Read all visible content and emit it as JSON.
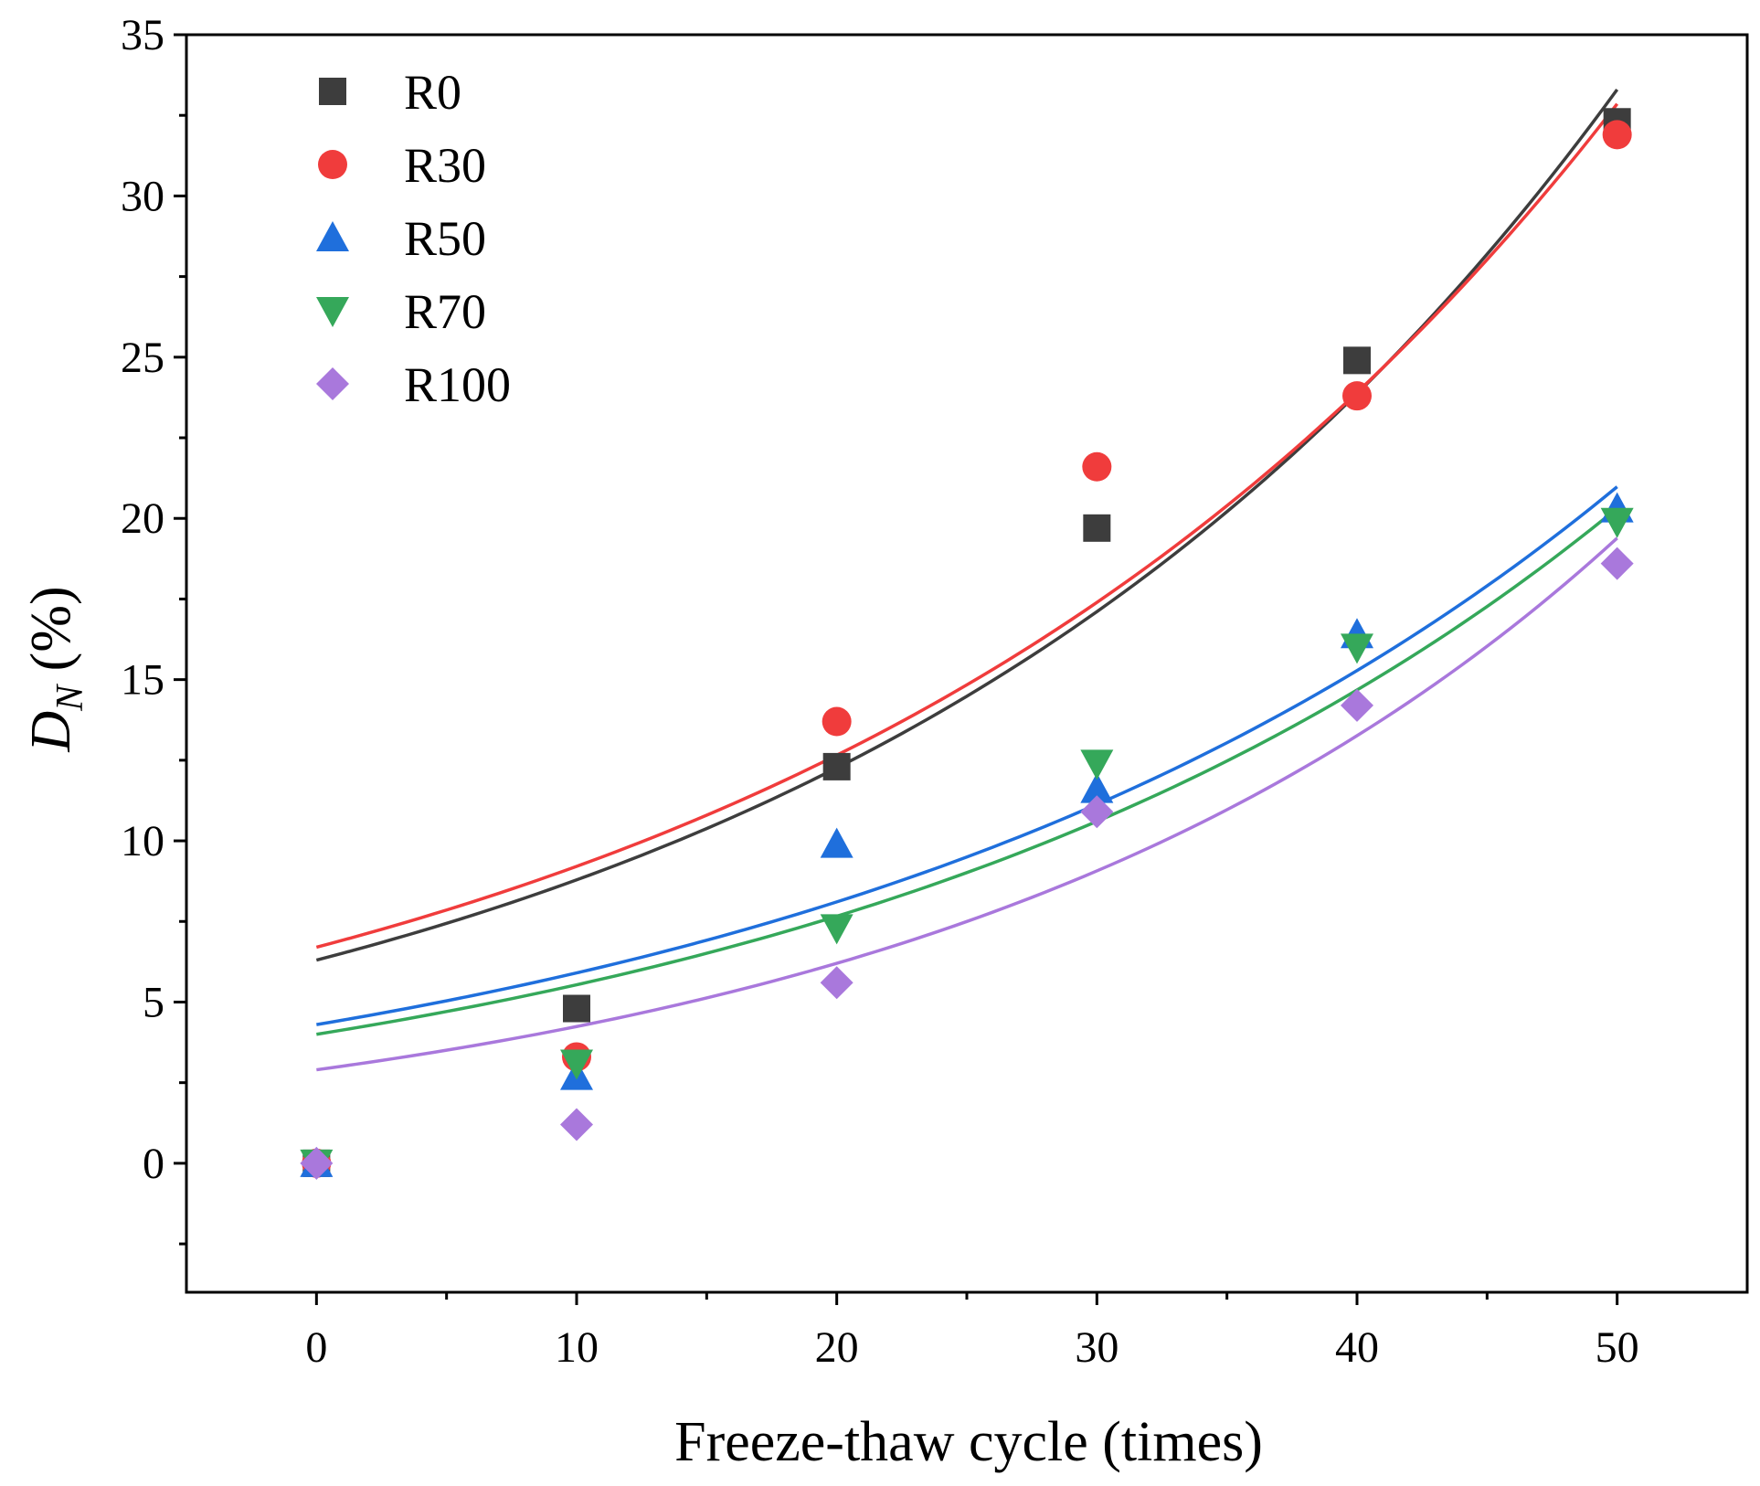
{
  "chart_data": {
    "type": "scatter",
    "xlabel": "Freeze-thaw cycle (times)",
    "ylabel_main": "D",
    "ylabel_sub": "N",
    "ylabel_unit": " (%)",
    "xlim": [
      -5,
      55
    ],
    "ylim": [
      -4,
      35
    ],
    "xticks": [
      0,
      10,
      20,
      30,
      40,
      50
    ],
    "yticks": [
      0,
      5,
      10,
      15,
      20,
      25,
      30,
      35
    ],
    "legend_position": "top-left",
    "series": [
      {
        "name": "R0",
        "marker": "square",
        "color": "#3d3d3d",
        "x": [
          0,
          10,
          20,
          30,
          40,
          50
        ],
        "y": [
          0,
          4.8,
          12.3,
          19.7,
          24.9,
          32.3
        ],
        "fit": {
          "type": "exponential",
          "a": 6.3,
          "b": 0.0333
        }
      },
      {
        "name": "R30",
        "marker": "circle",
        "color": "#f03c3c",
        "x": [
          0,
          10,
          20,
          30,
          40,
          50
        ],
        "y": [
          0,
          3.3,
          13.7,
          21.6,
          23.8,
          31.9
        ],
        "fit": {
          "type": "exponential",
          "a": 6.7,
          "b": 0.0318
        }
      },
      {
        "name": "R50",
        "marker": "triangle-up",
        "color": "#1f6fdc",
        "x": [
          0,
          10,
          20,
          30,
          40,
          50
        ],
        "y": [
          0,
          2.7,
          9.9,
          11.6,
          16.4,
          20.3
        ],
        "fit": {
          "type": "exponential",
          "a": 4.3,
          "b": 0.0317
        }
      },
      {
        "name": "R70",
        "marker": "triangle-down",
        "color": "#35a85a",
        "x": [
          0,
          10,
          20,
          30,
          40,
          50
        ],
        "y": [
          0,
          3.1,
          7.3,
          12.4,
          16.0,
          19.9
        ],
        "fit": {
          "type": "exponential",
          "a": 4.0,
          "b": 0.0325
        }
      },
      {
        "name": "R100",
        "marker": "diamond",
        "color": "#a978dc",
        "x": [
          0,
          10,
          20,
          30,
          40,
          50
        ],
        "y": [
          0,
          1.2,
          5.6,
          10.9,
          14.2,
          18.6
        ],
        "fit": {
          "type": "exponential",
          "a": 2.9,
          "b": 0.038
        }
      }
    ]
  }
}
